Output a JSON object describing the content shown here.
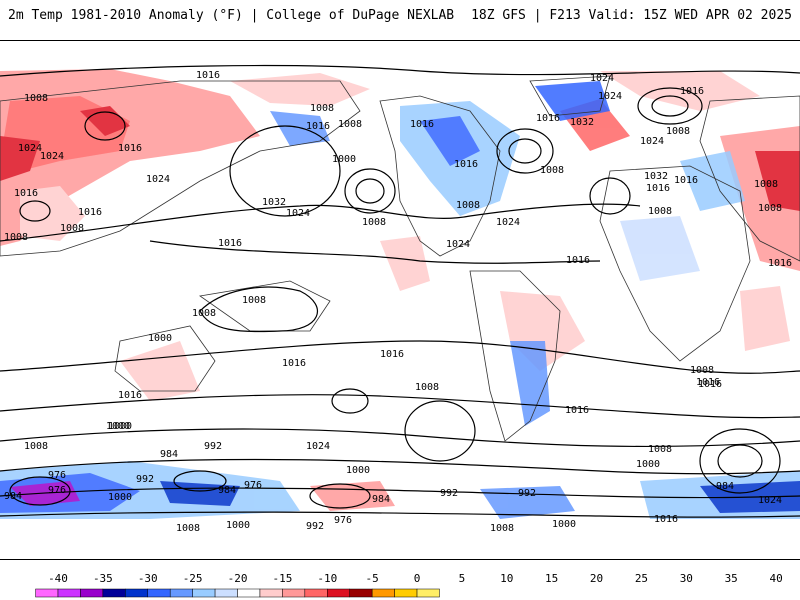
{
  "header": {
    "title_left": "2m Temp 1981-2010 Anomaly (°F) | College of DuPage NEXLAB",
    "title_right": "18Z GFS | F213 Valid: 15Z WED APR 02 2025"
  },
  "isobar_labels": [
    "1016",
    "1024",
    "1008",
    "1008",
    "1016",
    "1008",
    "1016",
    "1024",
    "1016",
    "1032",
    "1016",
    "1024",
    "1016",
    "1024",
    "1008",
    "1000",
    "1024",
    "1032",
    "1024",
    "1008",
    "1008",
    "1016",
    "1024",
    "1016",
    "1008",
    "1008",
    "1008",
    "1016",
    "1016",
    "1008",
    "1016",
    "1008",
    "1032",
    "1024",
    "1016",
    "1008",
    "1008",
    "1016",
    "1016",
    "1024",
    "1008",
    "1016",
    "1016",
    "1008",
    "1016",
    "1000",
    "1016",
    "1000",
    "1008",
    "1016",
    "992",
    "984",
    "1024",
    "1000",
    "1008",
    "1000",
    "992",
    "992",
    "984",
    "976",
    "1000",
    "984",
    "976",
    "984",
    "992",
    "976",
    "1008",
    "1000",
    "992",
    "976",
    "1008",
    "1000",
    "1016",
    "1024",
    "1000",
    "984",
    "1016",
    "1008"
  ],
  "colorbar": {
    "ticks": [
      "-40",
      "-35",
      "-30",
      "-25",
      "-20",
      "-15",
      "-10",
      "-5",
      "0",
      "5",
      "10",
      "15",
      "20",
      "25",
      "30",
      "35",
      "40"
    ],
    "colors": [
      "#ff66ff",
      "#cc33ff",
      "#9900cc",
      "#000099",
      "#0033cc",
      "#3366ff",
      "#6699ff",
      "#99ccff",
      "#ccdfff",
      "#ffffff",
      "#ffcccc",
      "#ff9999",
      "#ff6666",
      "#dd1122",
      "#990000",
      "#ff9900",
      "#ffcc00",
      "#ffee66"
    ]
  }
}
